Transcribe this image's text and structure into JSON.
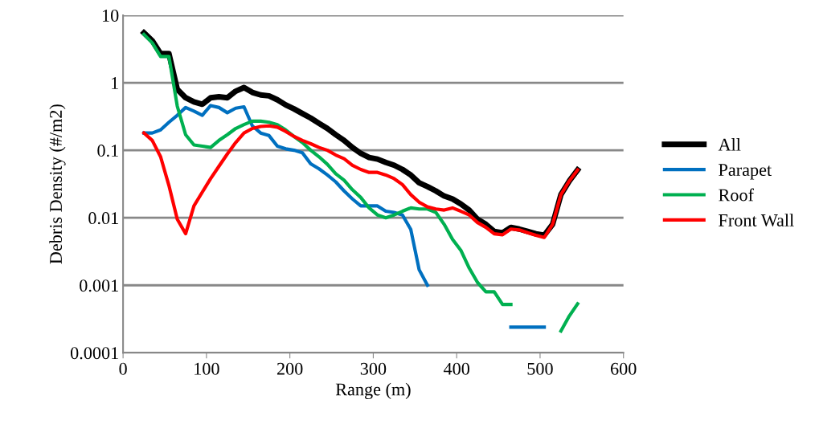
{
  "chart_data": {
    "type": "line",
    "xlabel": "Range (m)",
    "ylabel": "Debris Density (#/m2)",
    "log": "y",
    "grid": "y",
    "legend": "right",
    "marker": "none",
    "line_style": "solid",
    "xlim": [
      0,
      600
    ],
    "xticks": [
      0,
      100,
      200,
      300,
      400,
      500,
      600
    ],
    "ylim": [
      0.0001,
      10
    ],
    "yticks": [
      0.0001,
      0.001,
      0.01,
      0.1,
      1,
      10
    ],
    "x": [
      25,
      35,
      45,
      55,
      65,
      75,
      85,
      95,
      105,
      115,
      125,
      135,
      145,
      155,
      165,
      175,
      185,
      195,
      205,
      215,
      225,
      235,
      245,
      255,
      265,
      275,
      285,
      295,
      305,
      315,
      325,
      335,
      345,
      355,
      365,
      375,
      385,
      395,
      405,
      415,
      425,
      435,
      445,
      455,
      465,
      475,
      485,
      495,
      505,
      515,
      525,
      535,
      545
    ],
    "series": [
      {
        "name": "All",
        "color": "#000000",
        "values": [
          5.5,
          4.2,
          2.7,
          2.7,
          0.8,
          0.6,
          0.52,
          0.48,
          0.6,
          0.62,
          0.6,
          0.75,
          0.85,
          0.72,
          0.66,
          0.64,
          0.56,
          0.47,
          0.41,
          0.35,
          0.3,
          0.25,
          0.21,
          0.17,
          0.14,
          0.11,
          0.09,
          0.078,
          0.074,
          0.066,
          0.06,
          0.052,
          0.043,
          0.033,
          0.029,
          0.025,
          0.021,
          0.019,
          0.016,
          0.013,
          0.0095,
          0.008,
          0.0063,
          0.006,
          0.0072,
          0.0068,
          0.0063,
          0.0058,
          0.0055,
          0.008,
          0.022,
          0.035,
          0.051
        ]
      },
      {
        "name": "Parapet",
        "color": "#0070c0",
        "values": [
          0.18,
          0.18,
          0.2,
          0.26,
          0.33,
          0.43,
          0.38,
          0.33,
          0.46,
          0.43,
          0.36,
          0.42,
          0.44,
          0.23,
          0.18,
          0.165,
          0.115,
          0.105,
          0.1,
          0.092,
          0.063,
          0.053,
          0.043,
          0.034,
          0.025,
          0.019,
          0.015,
          0.015,
          0.015,
          0.0125,
          0.012,
          0.011,
          0.0067,
          0.0017,
          0.001,
          null,
          null,
          null,
          null,
          null,
          null,
          null,
          null,
          null,
          0.00024,
          0.00024,
          0.00024,
          0.00024,
          0.00024,
          null,
          null,
          null,
          null
        ]
      },
      {
        "name": "Roof",
        "color": "#00b050",
        "values": [
          5.2,
          3.9,
          2.45,
          2.45,
          0.45,
          0.17,
          0.12,
          0.115,
          0.11,
          0.14,
          0.17,
          0.21,
          0.24,
          0.27,
          0.27,
          0.26,
          0.24,
          0.2,
          0.16,
          0.13,
          0.1,
          0.08,
          0.062,
          0.045,
          0.036,
          0.026,
          0.02,
          0.014,
          0.011,
          0.01,
          0.011,
          0.0125,
          0.014,
          0.0135,
          0.0135,
          0.012,
          0.008,
          0.0048,
          0.0033,
          0.0018,
          0.0011,
          0.0008,
          0.0008,
          0.00052,
          0.00052,
          null,
          null,
          null,
          null,
          null,
          0.00021,
          0.00035,
          0.00053
        ]
      },
      {
        "name": "Front Wall",
        "color": "#ff0000",
        "values": [
          0.18,
          0.14,
          0.08,
          0.03,
          0.0095,
          0.0058,
          0.015,
          0.024,
          0.038,
          0.058,
          0.088,
          0.13,
          0.18,
          0.21,
          0.225,
          0.23,
          0.22,
          0.19,
          0.16,
          0.14,
          0.125,
          0.11,
          0.1,
          0.085,
          0.075,
          0.06,
          0.052,
          0.047,
          0.047,
          0.043,
          0.038,
          0.031,
          0.022,
          0.017,
          0.0145,
          0.0135,
          0.013,
          0.014,
          0.0125,
          0.011,
          0.0085,
          0.0072,
          0.0058,
          0.0056,
          0.0068,
          0.0066,
          0.006,
          0.0055,
          0.0051,
          0.008,
          0.022,
          0.035,
          0.051
        ]
      }
    ]
  }
}
